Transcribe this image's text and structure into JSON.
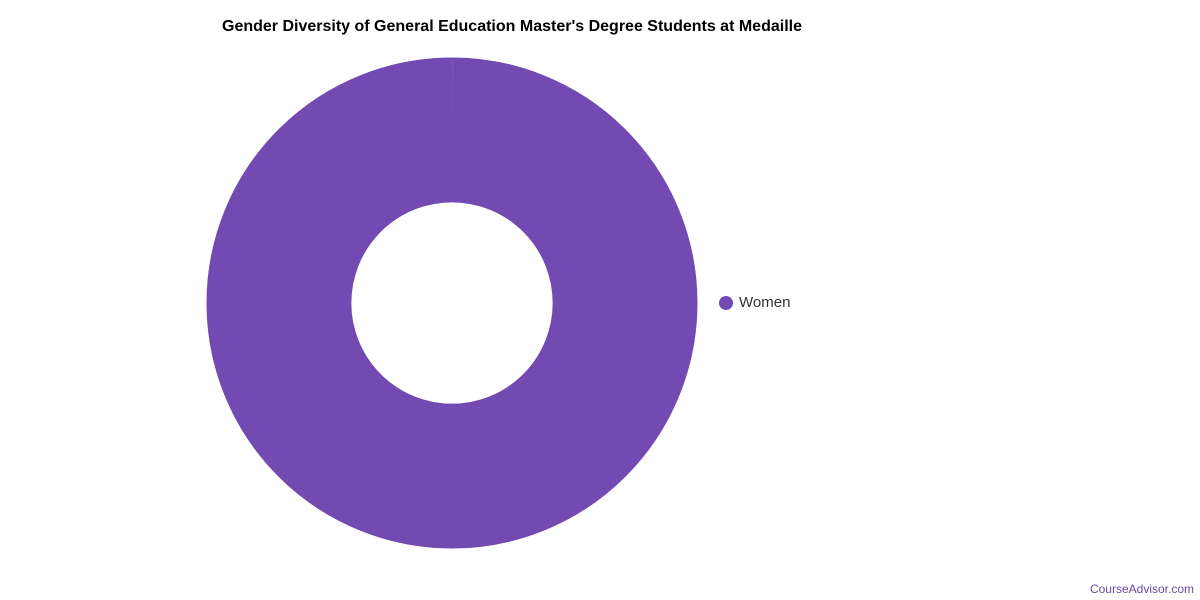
{
  "title": "Gender Diversity of General Education Master's Degree Students at Medaille",
  "watermark": "CourseAdvisor.com",
  "colors": {
    "background": "#ffffff",
    "slice": "#7349B2",
    "title_text": "#000000",
    "legend_text": "#333333",
    "watermark_text": "#6B4AA0"
  },
  "legend": {
    "position": "right",
    "items": [
      {
        "label": "Women",
        "color": "#7349B2"
      }
    ]
  },
  "chart_data": {
    "type": "pie",
    "donut": true,
    "title": "Gender Diversity of General Education Master's Degree Students at Medaille",
    "series": [
      {
        "name": "Women",
        "value": 100,
        "unit": "percent",
        "color": "#7349B2"
      }
    ],
    "legend_position": "right",
    "inner_radius_ratio": 0.41,
    "data_labels": false,
    "grid": false
  }
}
